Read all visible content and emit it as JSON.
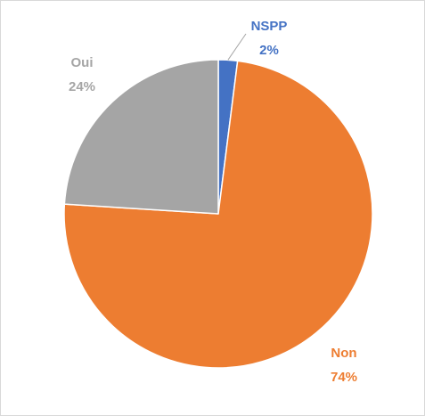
{
  "chart_data": {
    "type": "pie",
    "title": "",
    "start_angle_deg": 0,
    "direction": "clockwise",
    "legend": "none",
    "slices": [
      {
        "name": "NSPP",
        "value": 2,
        "label_name": "NSPP",
        "label_value": "2%",
        "color": "#4472C4"
      },
      {
        "name": "Non",
        "value": 74,
        "label_name": "Non",
        "label_value": "74%",
        "color": "#ED7D31"
      },
      {
        "name": "Oui",
        "value": 24,
        "label_name": "Oui",
        "label_value": "24%",
        "color": "#A5A5A5"
      }
    ]
  }
}
